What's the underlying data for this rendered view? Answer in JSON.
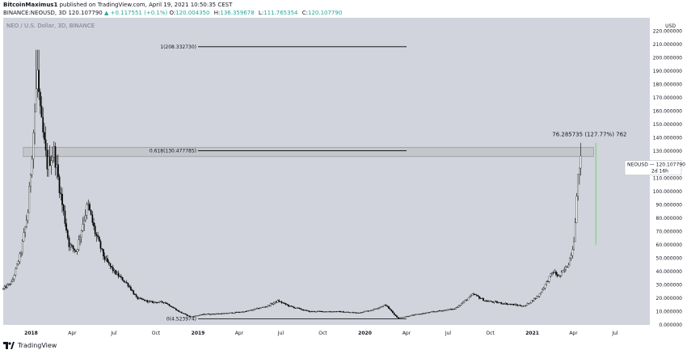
{
  "header": {
    "publisher": "BitcoinMaximus1",
    "published_text": "published on TradingView.com, April 19, 2021 10:50:35 CEST",
    "symbol": "BINANCE:NEOUSD, 3D",
    "last": "120.107790",
    "change": "▲ +0.117551 (+0.1%)",
    "ohlc": [
      {
        "label": "O:",
        "value": "120.004350"
      },
      {
        "label": "H:",
        "value": "136.359678"
      },
      {
        "label": "L:",
        "value": "111.765354"
      },
      {
        "label": "C:",
        "value": "120.107790"
      }
    ]
  },
  "chart_data": {
    "type": "candlestick",
    "title": "NEO / U.S. Dollar, 3D, BINANCE",
    "y_unit": "USD",
    "ylim": [
      0,
      230
    ],
    "y_ticks": [
      0,
      10,
      20,
      30,
      40,
      50,
      60,
      70,
      80,
      90,
      100,
      110,
      120,
      130,
      140,
      150,
      160,
      170,
      180,
      190,
      200,
      210,
      220
    ],
    "y_tick_labels": [
      "0.000000",
      "10.000000",
      "20.000000",
      "30.000000",
      "40.000000",
      "50.000000",
      "60.000000",
      "70.000000",
      "80.000000",
      "90.000000",
      "100.000000",
      "110.000000",
      "120.000000",
      "130.000000",
      "140.000000",
      "150.000000",
      "160.000000",
      "170.000000",
      "180.000000",
      "190.000000",
      "200.000000",
      "210.000000",
      "220.000000"
    ],
    "x_range": [
      "2017-11-01",
      "2021-09-15"
    ],
    "x_ticks": [
      {
        "date": "2018-01-01",
        "label": "2018",
        "bold": true
      },
      {
        "date": "2018-04-01",
        "label": "Apr"
      },
      {
        "date": "2018-07-01",
        "label": "Jul"
      },
      {
        "date": "2018-10-01",
        "label": "Oct"
      },
      {
        "date": "2019-01-01",
        "label": "2019",
        "bold": true
      },
      {
        "date": "2019-04-01",
        "label": "Apr"
      },
      {
        "date": "2019-07-01",
        "label": "Jul"
      },
      {
        "date": "2019-10-01",
        "label": "Oct"
      },
      {
        "date": "2020-01-01",
        "label": "2020",
        "bold": true
      },
      {
        "date": "2020-04-01",
        "label": "Apr"
      },
      {
        "date": "2020-07-01",
        "label": "Jul"
      },
      {
        "date": "2020-10-01",
        "label": "Oct"
      },
      {
        "date": "2021-01-01",
        "label": "2021",
        "bold": true
      },
      {
        "date": "2021-04-01",
        "label": "Apr"
      },
      {
        "date": "2021-07-01",
        "label": "Jul"
      }
    ],
    "price_path": [
      {
        "date": "2017-11-01",
        "price": 27
      },
      {
        "date": "2017-11-20",
        "price": 32
      },
      {
        "date": "2017-12-10",
        "price": 55
      },
      {
        "date": "2017-12-25",
        "price": 85
      },
      {
        "date": "2018-01-05",
        "price": 140
      },
      {
        "date": "2018-01-15",
        "price": 190
      },
      {
        "date": "2018-01-20",
        "price": 160
      },
      {
        "date": "2018-02-05",
        "price": 120
      },
      {
        "date": "2018-02-20",
        "price": 130
      },
      {
        "date": "2018-03-10",
        "price": 90
      },
      {
        "date": "2018-03-25",
        "price": 60
      },
      {
        "date": "2018-04-10",
        "price": 55
      },
      {
        "date": "2018-04-25",
        "price": 78
      },
      {
        "date": "2018-05-05",
        "price": 90
      },
      {
        "date": "2018-05-20",
        "price": 70
      },
      {
        "date": "2018-06-10",
        "price": 50
      },
      {
        "date": "2018-07-01",
        "price": 40
      },
      {
        "date": "2018-08-01",
        "price": 30
      },
      {
        "date": "2018-08-20",
        "price": 20
      },
      {
        "date": "2018-09-20",
        "price": 17
      },
      {
        "date": "2018-10-20",
        "price": 17
      },
      {
        "date": "2018-11-20",
        "price": 10
      },
      {
        "date": "2018-12-15",
        "price": 6
      },
      {
        "date": "2019-01-15",
        "price": 8
      },
      {
        "date": "2019-03-01",
        "price": 8.5
      },
      {
        "date": "2019-04-15",
        "price": 10
      },
      {
        "date": "2019-06-01",
        "price": 14
      },
      {
        "date": "2019-06-25",
        "price": 18
      },
      {
        "date": "2019-07-20",
        "price": 14
      },
      {
        "date": "2019-09-01",
        "price": 10
      },
      {
        "date": "2019-11-01",
        "price": 10
      },
      {
        "date": "2019-12-15",
        "price": 9
      },
      {
        "date": "2020-01-15",
        "price": 11
      },
      {
        "date": "2020-02-15",
        "price": 15
      },
      {
        "date": "2020-03-13",
        "price": 5
      },
      {
        "date": "2020-04-10",
        "price": 7
      },
      {
        "date": "2020-06-01",
        "price": 10
      },
      {
        "date": "2020-07-15",
        "price": 12
      },
      {
        "date": "2020-08-25",
        "price": 23
      },
      {
        "date": "2020-09-20",
        "price": 18
      },
      {
        "date": "2020-11-01",
        "price": 16
      },
      {
        "date": "2020-12-15",
        "price": 14
      },
      {
        "date": "2021-01-15",
        "price": 22
      },
      {
        "date": "2021-02-15",
        "price": 40
      },
      {
        "date": "2021-03-01",
        "price": 36
      },
      {
        "date": "2021-03-20",
        "price": 45
      },
      {
        "date": "2021-04-01",
        "price": 60
      },
      {
        "date": "2021-04-09",
        "price": 100
      },
      {
        "date": "2021-04-15",
        "price": 125
      },
      {
        "date": "2021-04-19",
        "price": 120
      }
    ],
    "fib_levels": [
      {
        "label": "1(208.332730)",
        "value": 208.33273,
        "date_start": "2019-01-01",
        "date_end": "2020-04-01"
      },
      {
        "label": "0.618(130.477785)",
        "value": 130.477785,
        "date_start": "2019-01-01",
        "date_end": "2020-04-01"
      },
      {
        "label": "0(4.523974)",
        "value": 4.523974,
        "date_start": "2019-01-01",
        "date_end": "2020-04-01"
      }
    ],
    "resistance_zone": {
      "low": 126,
      "high": 133,
      "date_start": "2017-12-15",
      "date_end": "2021-05-15"
    },
    "measure": {
      "label": "76.285735 (127.77%) 762",
      "from": 60,
      "to": 136.359678,
      "date": "2021-05-20"
    },
    "price_label": {
      "symbol": "NEOUSD",
      "value": "120.107790",
      "countdown": "2d 16h",
      "price": 120.10779
    }
  },
  "footer": {
    "brand": "TradingView"
  }
}
